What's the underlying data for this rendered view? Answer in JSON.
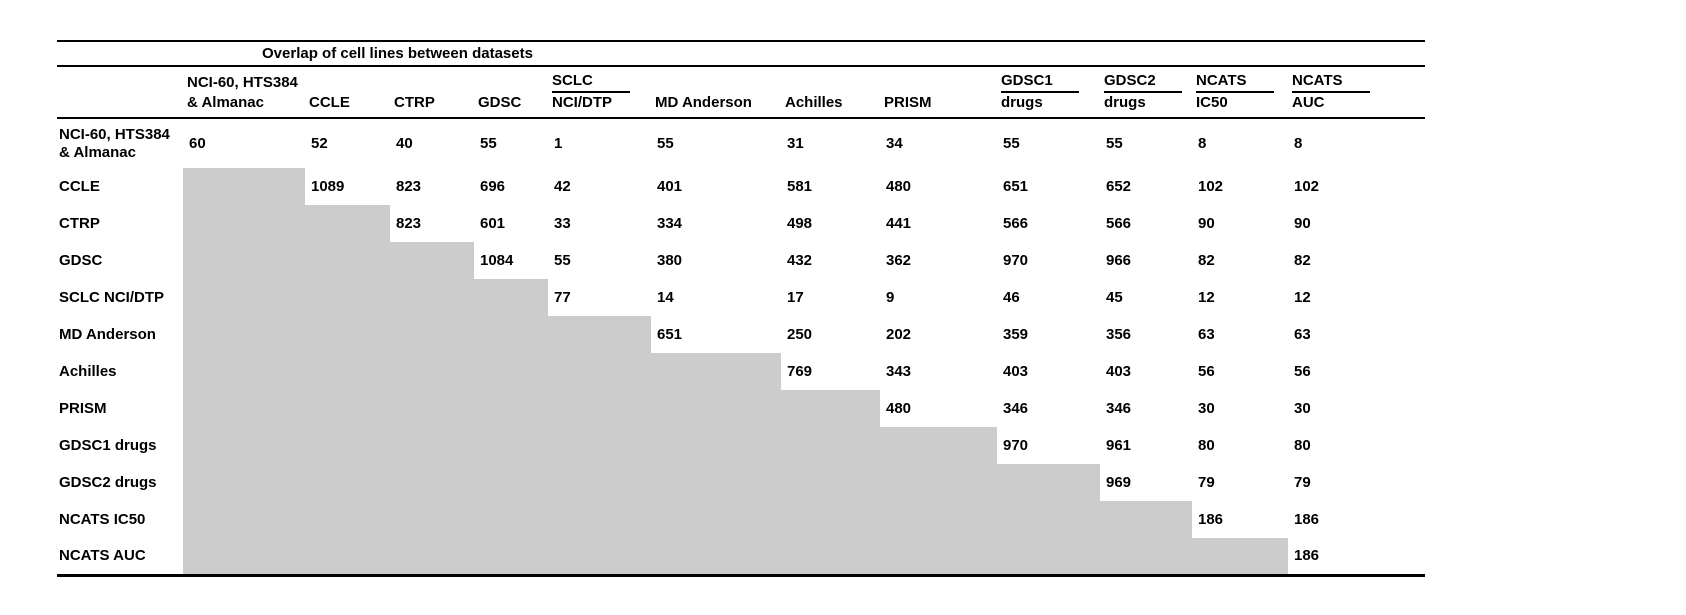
{
  "title": "Overlap of cell lines between datasets",
  "colors": {
    "shaded": "#cccccc",
    "rule": "#000000"
  },
  "columns": [
    {
      "lines": [
        "NCI-60, HTS384",
        "& Almanac"
      ],
      "midrule": false
    },
    {
      "lines": [
        "CCLE"
      ],
      "midrule": false
    },
    {
      "lines": [
        "CTRP"
      ],
      "midrule": false
    },
    {
      "lines": [
        "GDSC"
      ],
      "midrule": false
    },
    {
      "lines": [
        "SCLC",
        "NCI/DTP"
      ],
      "midrule": true
    },
    {
      "lines": [
        "MD Anderson"
      ],
      "midrule": false
    },
    {
      "lines": [
        "Achilles"
      ],
      "midrule": false
    },
    {
      "lines": [
        "PRISM"
      ],
      "midrule": false
    },
    {
      "lines": [
        "GDSC1",
        "drugs"
      ],
      "midrule": true
    },
    {
      "lines": [
        "GDSC2",
        "drugs"
      ],
      "midrule": true
    },
    {
      "lines": [
        "NCATS",
        "IC50"
      ],
      "midrule": true
    },
    {
      "lines": [
        "NCATS",
        "AUC"
      ],
      "midrule": true
    }
  ],
  "rows": [
    {
      "label": [
        "NCI-60, HTS384",
        "& Almanac"
      ],
      "values": [
        60,
        52,
        40,
        55,
        1,
        55,
        31,
        34,
        55,
        55,
        8,
        8
      ]
    },
    {
      "label": [
        "CCLE"
      ],
      "values": [
        null,
        1089,
        823,
        696,
        42,
        401,
        581,
        480,
        651,
        652,
        102,
        102
      ]
    },
    {
      "label": [
        "CTRP"
      ],
      "values": [
        null,
        null,
        823,
        601,
        33,
        334,
        498,
        441,
        566,
        566,
        90,
        90
      ]
    },
    {
      "label": [
        "GDSC"
      ],
      "values": [
        null,
        null,
        null,
        1084,
        55,
        380,
        432,
        362,
        970,
        966,
        82,
        82
      ]
    },
    {
      "label": [
        "SCLC NCI/DTP"
      ],
      "values": [
        null,
        null,
        null,
        null,
        77,
        14,
        17,
        9,
        46,
        45,
        12,
        12
      ]
    },
    {
      "label": [
        "MD Anderson"
      ],
      "values": [
        null,
        null,
        null,
        null,
        null,
        651,
        250,
        202,
        359,
        356,
        63,
        63
      ]
    },
    {
      "label": [
        "Achilles"
      ],
      "values": [
        null,
        null,
        null,
        null,
        null,
        null,
        769,
        343,
        403,
        403,
        56,
        56
      ]
    },
    {
      "label": [
        "PRISM"
      ],
      "values": [
        null,
        null,
        null,
        null,
        null,
        null,
        null,
        480,
        346,
        346,
        30,
        30
      ]
    },
    {
      "label": [
        "GDSC1 drugs"
      ],
      "values": [
        null,
        null,
        null,
        null,
        null,
        null,
        null,
        null,
        970,
        961,
        80,
        80
      ]
    },
    {
      "label": [
        "GDSC2 drugs"
      ],
      "values": [
        null,
        null,
        null,
        null,
        null,
        null,
        null,
        null,
        null,
        969,
        79,
        79
      ]
    },
    {
      "label": [
        "NCATS IC50"
      ],
      "values": [
        null,
        null,
        null,
        null,
        null,
        null,
        null,
        null,
        null,
        null,
        186,
        186
      ]
    },
    {
      "label": [
        "NCATS AUC"
      ],
      "values": [
        null,
        null,
        null,
        null,
        null,
        null,
        null,
        null,
        null,
        null,
        null,
        186
      ]
    }
  ]
}
